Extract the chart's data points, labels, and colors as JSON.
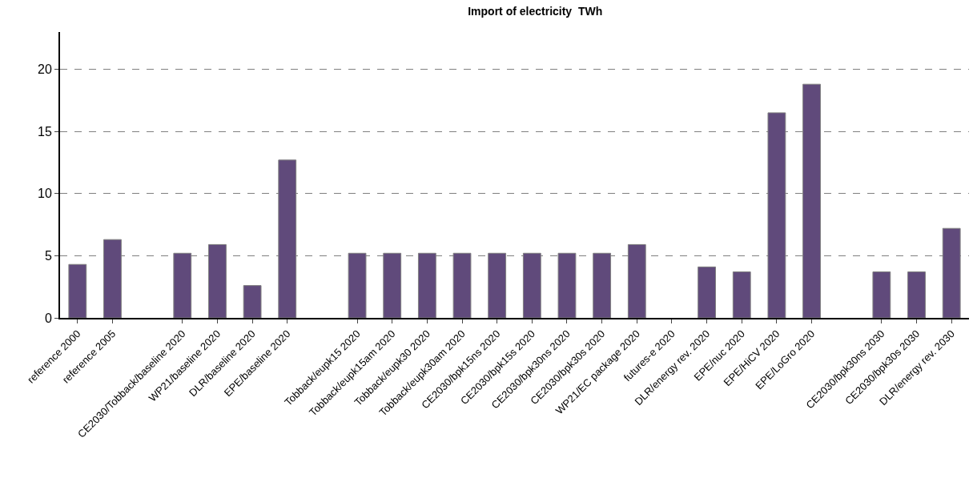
{
  "chart_data": {
    "type": "bar",
    "title": "Import of electricity  TWh",
    "categories": [
      "reference 2000",
      "reference 2005",
      null,
      "CE2030/Tobback/baseline 2020",
      "WP21/baseline 2020",
      "DLR/baseline 2020",
      "EPE/baseline 2020",
      null,
      "Tobback/eupk15 2020",
      "Tobback/eupk15am 2020",
      "Tobback/eupk30 2020",
      "Tobback/eupk30am 2020",
      "CE2030/bpk15ns 2020",
      "CE2030/bpk15s 2020",
      "CE2030/bpk30ns 2020",
      "CE2030/bpk30s 2020",
      "WP21/EC package 2020",
      "futures-e 2020",
      "DLR/energy rev. 2020",
      "EPE/nuc 2020",
      "EPE/HiCV 2020",
      "EPE/LoGro 2020",
      null,
      "CE2030/bpk30ns 2030",
      "CE2030/bpk30s 2030",
      "DLR/energy rev. 2030"
    ],
    "values": [
      4.3,
      6.3,
      null,
      5.2,
      5.9,
      2.6,
      12.7,
      null,
      5.2,
      5.2,
      5.2,
      5.2,
      5.2,
      5.2,
      5.2,
      5.2,
      5.9,
      null,
      4.1,
      3.7,
      16.5,
      18.8,
      null,
      3.7,
      3.7,
      7.2
    ],
    "color": "#604a7b",
    "ylim": [
      0,
      23
    ],
    "yticks": [
      0,
      5,
      10,
      15,
      20
    ],
    "grid": "y"
  }
}
